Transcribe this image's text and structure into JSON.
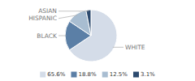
{
  "chart_data": {
    "type": "pie",
    "categories": [
      "WHITE",
      "BLACK",
      "HISPANIC",
      "ASIAN"
    ],
    "values": [
      65.6,
      18.8,
      12.5,
      3.1
    ],
    "value_labels": [
      "65.6%",
      "18.8%",
      "12.5%",
      "3.1%"
    ],
    "colors": [
      "#d4dce8",
      "#5b7fa6",
      "#a8bdd1",
      "#2c4a6e"
    ],
    "legend": "bottom"
  }
}
